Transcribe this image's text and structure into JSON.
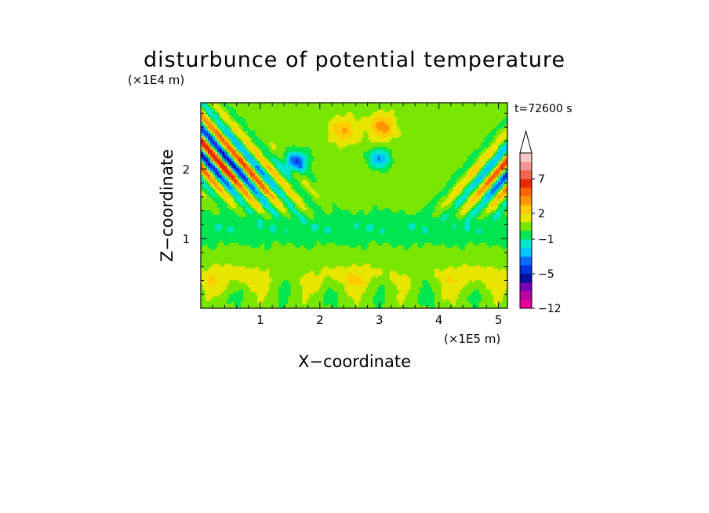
{
  "chart_data": {
    "type": "heatmap",
    "title": "disturbunce of potential temperature",
    "xlabel": "X−coordinate",
    "ylabel": "Z−coordinate",
    "x_unit": "(×1E5 m)",
    "y_unit": "(×1E4 m)",
    "time_label": "t=72600 s",
    "xlim": [
      0,
      5.15
    ],
    "ylim": [
      0,
      2.95
    ],
    "x_ticks": [
      "1",
      "2",
      "3",
      "4",
      "5"
    ],
    "x_tick_values": [
      1,
      2,
      3,
      4,
      5
    ],
    "y_ticks": [
      "1",
      "2"
    ],
    "y_tick_values": [
      1,
      2
    ],
    "colorbar": {
      "extend": "max",
      "levels": [
        -12,
        -10,
        -8,
        -6,
        -5,
        -4,
        -3,
        -2,
        -1,
        0,
        1,
        2,
        3,
        4,
        5,
        7,
        9,
        11,
        13
      ],
      "colors": [
        "#e6009a",
        "#b8009e",
        "#7a00b4",
        "#0010a0",
        "#0032dc",
        "#0a6cff",
        "#00c8ff",
        "#00e6cc",
        "#00e650",
        "#78e600",
        "#e6e600",
        "#ffcc00",
        "#ff9600",
        "#ff6400",
        "#e62800",
        "#f06450",
        "#f59696",
        "#f8c8c8"
      ],
      "extend_color": "#ffffff",
      "tick_labels": [
        "7",
        "2",
        "−1",
        "−5",
        "−12"
      ],
      "tick_values": [
        7,
        2,
        -1,
        -5,
        -12
      ]
    }
  }
}
